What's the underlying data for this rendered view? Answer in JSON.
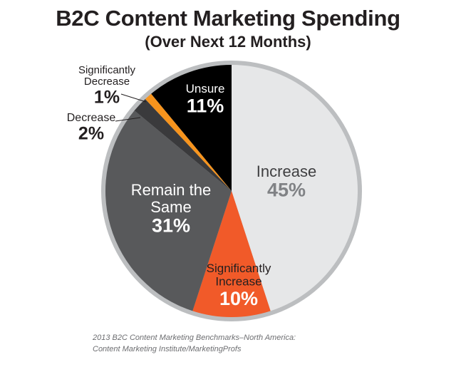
{
  "chart_data": {
    "type": "pie",
    "title": "B2C Content Marketing Spending",
    "subtitle": "(Over Next 12 Months)",
    "slices": [
      {
        "label": "Increase",
        "value": 45,
        "value_label": "45%",
        "color": "#e6e7e8"
      },
      {
        "label": "Significantly Increase",
        "value": 10,
        "value_label": "10%",
        "color": "#f15a29"
      },
      {
        "label": "Remain the Same",
        "value": 31,
        "value_label": "31%",
        "color": "#58595b"
      },
      {
        "label": "Decrease",
        "value": 2,
        "value_label": "2%",
        "color": "#3a3a3c"
      },
      {
        "label": "Significantly Decrease",
        "value": 1,
        "value_label": "1%",
        "color": "#f7941d"
      },
      {
        "label": "Unsure",
        "value": 11,
        "value_label": "11%",
        "color": "#000000"
      }
    ],
    "start": "12 o'clock",
    "direction": "clockwise"
  },
  "source": {
    "line1": "2013 B2C Content Marketing Benchmarks–North America:",
    "line2": "Content Marketing Institute/MarketingProfs"
  }
}
